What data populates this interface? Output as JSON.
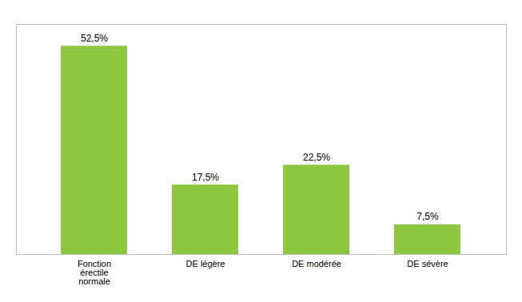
{
  "chart_data": {
    "type": "bar",
    "categories": [
      "Fonction\nérectile\nnormale",
      "DE légère",
      "DE modérée",
      "DE sévère"
    ],
    "values": [
      52.5,
      17.5,
      22.5,
      7.5
    ],
    "value_labels": [
      "52,5%",
      "17,5%",
      "22,5%",
      "7,5%"
    ],
    "data_labels": true,
    "color": "#8dc63f",
    "ylim": [
      0,
      58
    ],
    "yticks": [],
    "grid": false,
    "tick_labels": "x"
  }
}
